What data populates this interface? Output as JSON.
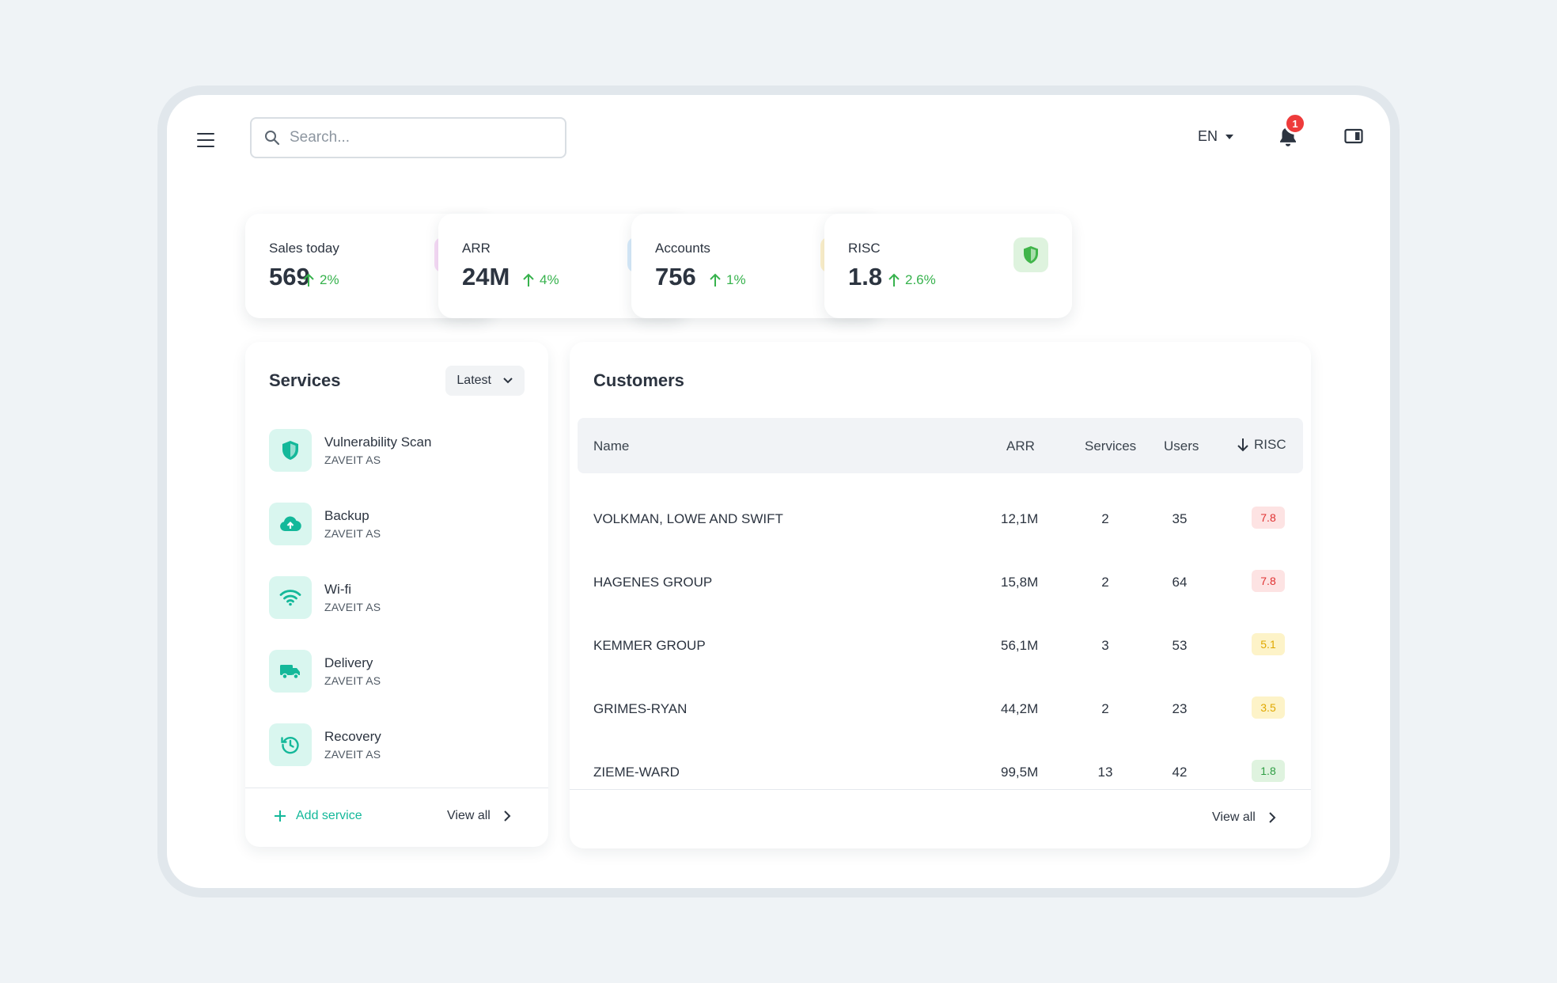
{
  "header": {
    "search_placeholder": "Search...",
    "language": "EN",
    "notification_count": "1"
  },
  "stats": [
    {
      "label": "Sales today",
      "value": "569",
      "change": "2%",
      "icon": "store-icon",
      "icon_bg": "#f7dbf7",
      "icon_color": "#d24fd8"
    },
    {
      "label": "ARR",
      "value": "24M",
      "change": "4%",
      "icon": "dollar-icon",
      "icon_bg": "#d7ebfb",
      "icon_color": "#3399e6"
    },
    {
      "label": "Accounts",
      "value": "756",
      "change": "1%",
      "icon": "user-icon",
      "icon_bg": "#fdf1cc",
      "icon_color": "#f2b707"
    },
    {
      "label": "RISC",
      "value": "1.8",
      "change": "2.6%",
      "icon": "shield-icon",
      "icon_bg": "#def3de",
      "icon_color": "#40b54a"
    }
  ],
  "services": {
    "title": "Services",
    "sort_label": "Latest",
    "items": [
      {
        "name": "Vulnerability Scan",
        "company": "ZAVEIT AS",
        "icon": "shield-icon"
      },
      {
        "name": "Backup",
        "company": "ZAVEIT AS",
        "icon": "cloud-upload-icon"
      },
      {
        "name": "Wi-fi",
        "company": "ZAVEIT AS",
        "icon": "wifi-icon"
      },
      {
        "name": "Delivery",
        "company": "ZAVEIT AS",
        "icon": "truck-icon"
      },
      {
        "name": "Recovery",
        "company": "ZAVEIT AS",
        "icon": "history-icon"
      }
    ],
    "add_label": "Add service",
    "view_all_label": "View all"
  },
  "customers": {
    "title": "Customers",
    "columns": {
      "name": "Name",
      "arr": "ARR",
      "services": "Services",
      "users": "Users",
      "risc": "RISC"
    },
    "rows": [
      {
        "name": "VOLKMAN, LOWE AND SWIFT",
        "arr": "12,1M",
        "services": "2",
        "users": "35",
        "risc": "7.8",
        "risc_bg": "#fde3e3",
        "risc_color": "#e03131"
      },
      {
        "name": "HAGENES GROUP",
        "arr": "15,8M",
        "services": "2",
        "users": "64",
        "risc": "7.8",
        "risc_bg": "#fde3e3",
        "risc_color": "#e03131"
      },
      {
        "name": "KEMMER GROUP",
        "arr": "56,1M",
        "services": "3",
        "users": "53",
        "risc": "5.1",
        "risc_bg": "#fdf3c8",
        "risc_color": "#e0a800"
      },
      {
        "name": "GRIMES-RYAN",
        "arr": "44,2M",
        "services": "2",
        "users": "23",
        "risc": "3.5",
        "risc_bg": "#fdf3c8",
        "risc_color": "#e0a800"
      },
      {
        "name": "ZIEME-WARD",
        "arr": "99,5M",
        "services": "13",
        "users": "42",
        "risc": "1.8",
        "risc_bg": "#dff3df",
        "risc_color": "#2f9e44"
      }
    ],
    "view_all_label": "View all"
  }
}
